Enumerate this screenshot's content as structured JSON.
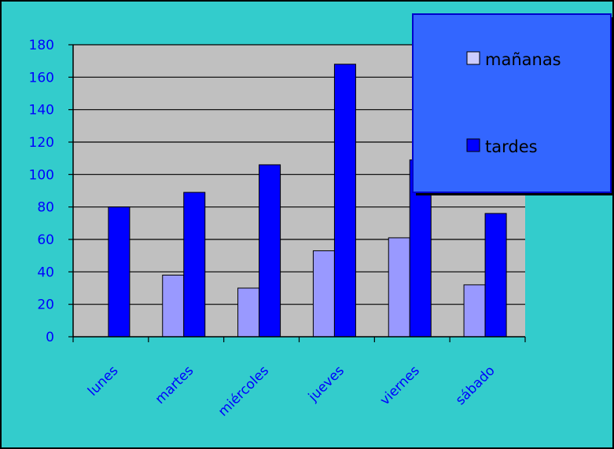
{
  "chart_data": {
    "type": "bar",
    "categories": [
      "lunes",
      "martes",
      "miércoles",
      "jueves",
      "viernes",
      "sábado"
    ],
    "series": [
      {
        "name": "mañanas",
        "values": [
          0,
          38,
          30,
          53,
          61,
          32
        ],
        "color": "#9999ff"
      },
      {
        "name": "tardes",
        "values": [
          80,
          89,
          106,
          168,
          109,
          76
        ],
        "color": "#0000ff"
      }
    ],
    "ylim": [
      0,
      180
    ],
    "yticks": [
      0,
      20,
      40,
      60,
      80,
      100,
      120,
      140,
      160,
      180
    ],
    "grid": true,
    "legend_position": "top-right",
    "colors": {
      "background": "#33cccc",
      "plot_area": "#c0c0c0",
      "legend_box": "#3366ff",
      "text": "#0000ff"
    }
  }
}
